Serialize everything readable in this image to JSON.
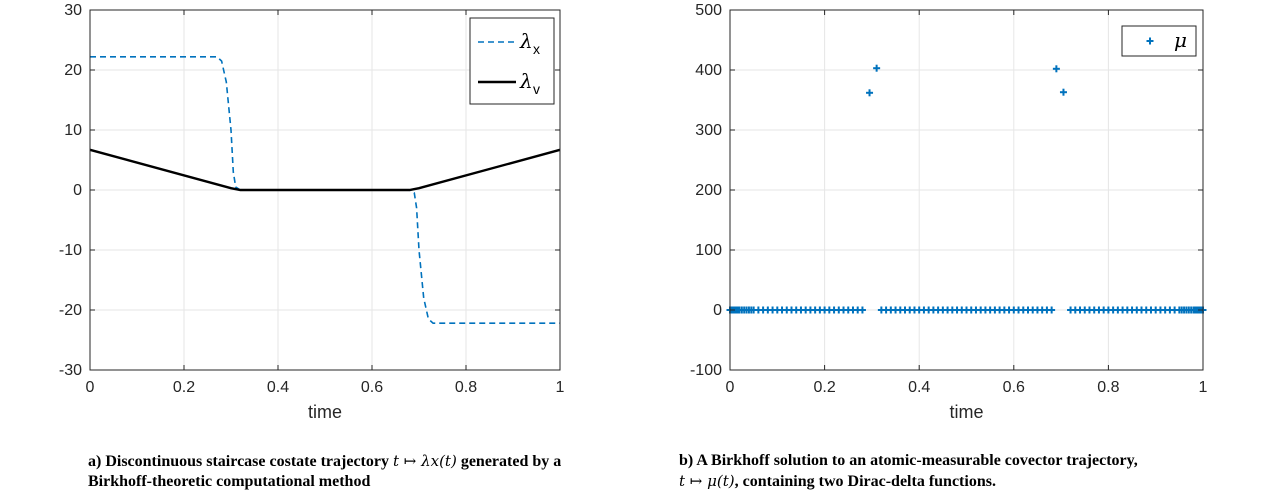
{
  "chart_data": [
    {
      "type": "line",
      "xlabel": "time",
      "ylabel": "",
      "xlim": [
        0,
        1
      ],
      "ylim": [
        -30,
        30
      ],
      "xticks": [
        "0",
        "0.2",
        "0.4",
        "0.6",
        "0.8",
        "1"
      ],
      "yticks": [
        "-30",
        "-20",
        "-10",
        "0",
        "10",
        "20",
        "30"
      ],
      "grid": true,
      "legend_position": "top-right",
      "series": [
        {
          "name": "λx",
          "legend_symbol": "λ",
          "legend_subscript": "x",
          "style": "dashed",
          "color": "#0072BD",
          "x": [
            0,
            0.27,
            0.28,
            0.29,
            0.3,
            0.305,
            0.31,
            0.32,
            0.68,
            0.69,
            0.695,
            0.7,
            0.71,
            0.72,
            0.73,
            1
          ],
          "y": [
            22.2,
            22.2,
            21.5,
            18,
            10,
            3,
            0.5,
            0,
            0,
            -0.5,
            -3,
            -10,
            -18,
            -21.5,
            -22.2,
            -22.2
          ]
        },
        {
          "name": "λv",
          "legend_symbol": "λ",
          "legend_subscript": "v",
          "style": "solid",
          "color": "#000000",
          "x": [
            0,
            0.3,
            0.32,
            0.68,
            0.7,
            1
          ],
          "y": [
            6.7,
            0.3,
            0,
            0,
            0.3,
            6.7
          ]
        }
      ],
      "caption": {
        "text_before": "a)  Discontinuous staircase costate trajectory ",
        "math": "t ↦ λx(t)",
        "text_after": " generated by a Birkhoff-theoretic computational method"
      }
    },
    {
      "type": "scatter",
      "xlabel": "time",
      "ylabel": "",
      "xlim": [
        0,
        1
      ],
      "ylim": [
        -100,
        500
      ],
      "xticks": [
        "0",
        "0.2",
        "0.4",
        "0.6",
        "0.8",
        "1"
      ],
      "yticks": [
        "-100",
        "0",
        "100",
        "200",
        "300",
        "400",
        "500"
      ],
      "grid": true,
      "legend_position": "top-right",
      "series": [
        {
          "name": "μ",
          "marker": "+",
          "color": "#0072BD",
          "points": [
            [
              0.295,
              362
            ],
            [
              0.31,
              403
            ],
            [
              0.69,
              402
            ],
            [
              0.705,
              363
            ]
          ],
          "zero_points_x": [
            0.0,
            0.0025,
            0.005,
            0.0075,
            0.01,
            0.0125,
            0.015,
            0.0175,
            0.02,
            0.025,
            0.03,
            0.035,
            0.04,
            0.045,
            0.05,
            0.06,
            0.07,
            0.08,
            0.09,
            0.1,
            0.11,
            0.12,
            0.13,
            0.14,
            0.15,
            0.16,
            0.17,
            0.18,
            0.19,
            0.2,
            0.21,
            0.22,
            0.23,
            0.24,
            0.25,
            0.26,
            0.27,
            0.28,
            0.32,
            0.33,
            0.34,
            0.35,
            0.36,
            0.37,
            0.38,
            0.39,
            0.4,
            0.41,
            0.42,
            0.43,
            0.44,
            0.45,
            0.46,
            0.47,
            0.48,
            0.49,
            0.5,
            0.51,
            0.52,
            0.53,
            0.54,
            0.55,
            0.56,
            0.57,
            0.58,
            0.59,
            0.6,
            0.61,
            0.62,
            0.63,
            0.64,
            0.65,
            0.66,
            0.67,
            0.68,
            0.72,
            0.73,
            0.74,
            0.75,
            0.76,
            0.77,
            0.78,
            0.79,
            0.8,
            0.81,
            0.82,
            0.83,
            0.84,
            0.85,
            0.86,
            0.87,
            0.88,
            0.89,
            0.9,
            0.91,
            0.92,
            0.93,
            0.94,
            0.95,
            0.955,
            0.96,
            0.965,
            0.97,
            0.975,
            0.98,
            0.9825,
            0.985,
            0.9875,
            0.99,
            0.9925,
            0.995,
            0.9975,
            1.0
          ]
        }
      ],
      "caption": {
        "text_before": "b)  A Birkhoff solution to an atomic-measurable covector trajectory,",
        "math": "t ↦ μ(t)",
        "text_after": ", containing two Dirac-delta functions."
      }
    }
  ]
}
